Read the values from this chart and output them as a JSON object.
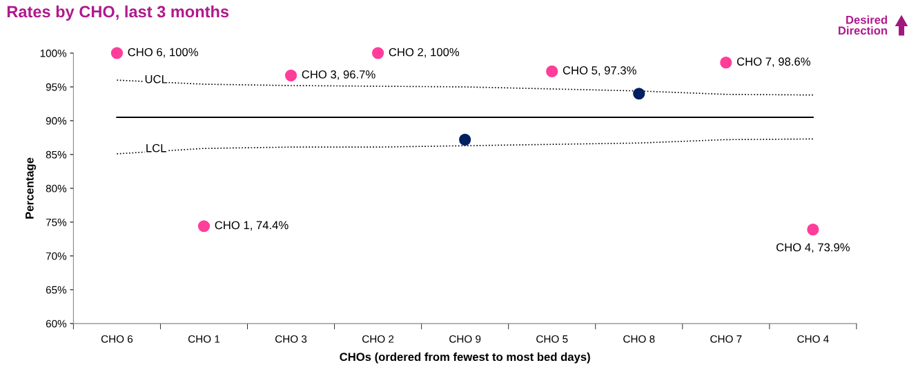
{
  "chart_data": {
    "type": "scatter",
    "title": "Rates by CHO, last 3 months",
    "xlabel": "CHOs (ordered from fewest to most bed days)",
    "ylabel": "Percentage",
    "categories": [
      "CHO 6",
      "CHO 1",
      "CHO 3",
      "CHO 2",
      "CHO 9",
      "CHO 5",
      "CHO 8",
      "CHO 7",
      "CHO 4"
    ],
    "series": [
      {
        "values": [
          100,
          74.4,
          96.7,
          100,
          87.2,
          97.3,
          94.0,
          98.6,
          73.9
        ],
        "colors": [
          "#ff3e9a",
          "#ff3e9a",
          "#ff3e9a",
          "#ff3e9a",
          "#002060",
          "#ff3e9a",
          "#002060",
          "#ff3e9a",
          "#ff3e9a"
        ],
        "value_labels": [
          "CHO 6, 100%",
          "CHO 1, 74.4%",
          "CHO 3, 96.7%",
          "CHO 2, 100%",
          null,
          "CHO 5, 97.3%",
          null,
          "CHO 7, 98.6%",
          "CHO 4, 73.9%"
        ],
        "marker": "circle"
      },
      {
        "type": "line",
        "name": "UCL",
        "color": "#000000",
        "line_style": "dotted",
        "values": [
          96.0,
          95.4,
          95.2,
          95.1,
          95.0,
          94.7,
          94.4,
          93.9,
          93.8
        ]
      },
      {
        "type": "line",
        "name": "LCL",
        "color": "#000000",
        "line_style": "dotted",
        "values": [
          85.1,
          85.9,
          86.1,
          86.1,
          86.3,
          86.5,
          86.7,
          87.2,
          87.3
        ]
      }
    ],
    "ref_lines": [
      {
        "axis": "y",
        "value": 90.5,
        "label": null,
        "color": "#000000",
        "line_style": "solid"
      }
    ],
    "annotations": [
      "Desired Direction"
    ],
    "ylim": [
      60,
      100
    ],
    "yticks": [
      {
        "value": 60,
        "label": "60%"
      },
      {
        "value": 65,
        "label": "65%"
      },
      {
        "value": 70,
        "label": "70%"
      },
      {
        "value": 75,
        "label": "75%"
      },
      {
        "value": 80,
        "label": "80%"
      },
      {
        "value": 85,
        "label": "85%"
      },
      {
        "value": 90,
        "label": "90%"
      },
      {
        "value": 95,
        "label": "95%"
      },
      {
        "value": 100,
        "label": "100%"
      }
    ],
    "grid": false,
    "legend": false
  }
}
